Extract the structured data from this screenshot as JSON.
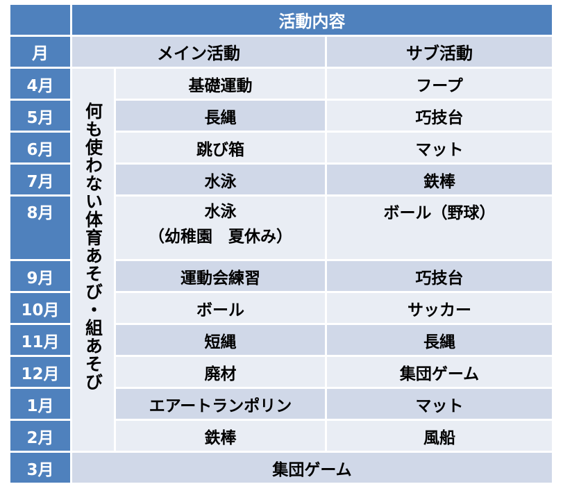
{
  "header": {
    "corner": "",
    "activity_title": "活動内容",
    "month_title": "月",
    "main_title": "メイン活動",
    "sub_title": "サブ活動"
  },
  "side_note": "何も使わない体育あそび・組あそび",
  "rows": [
    {
      "month": "4月",
      "main": "基礎運動",
      "sub": "フープ"
    },
    {
      "month": "5月",
      "main": "長縄",
      "sub": "巧技台"
    },
    {
      "month": "6月",
      "main": "跳び箱",
      "sub": "マット"
    },
    {
      "month": "7月",
      "main": "水泳",
      "sub": "鉄棒"
    },
    {
      "month": "8月",
      "main": "水泳",
      "main_note": "（幼稚園　夏休み）",
      "sub": "ボール（野球）"
    },
    {
      "month": "9月",
      "main": "運動会練習",
      "sub": "巧技台"
    },
    {
      "month": "10月",
      "main": "ボール",
      "sub": "サッカー"
    },
    {
      "month": "11月",
      "main": "短縄",
      "sub": "長縄"
    },
    {
      "month": "12月",
      "main": "廃材",
      "sub": "集団ゲーム"
    },
    {
      "month": "1月",
      "main": "エアートランポリン",
      "sub": "マット"
    },
    {
      "month": "2月",
      "main": "鉄棒",
      "sub": "風船"
    },
    {
      "month": "3月",
      "combined": "集団ゲーム"
    }
  ]
}
